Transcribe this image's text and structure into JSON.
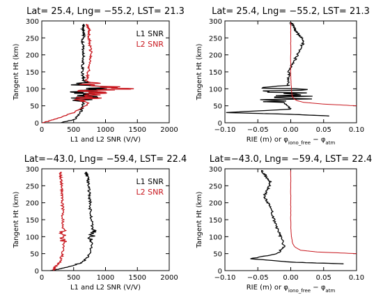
{
  "colors": {
    "l1": "#000000",
    "l2": "#c8161d",
    "axis": "#000000"
  },
  "chart_data": [
    {
      "type": "line",
      "title": "Lat= 25.4, Lng= −55.2, LST= 21.3",
      "xlabel": "L1 and L2 SNR (V/V)",
      "ylabel": "Tangent Ht (km)",
      "xlim": [
        0,
        2000
      ],
      "ylim": [
        0,
        300
      ],
      "xticks": [
        "0",
        "500",
        "1000",
        "1500",
        "2000"
      ],
      "yticks": [
        "0",
        "50",
        "100",
        "150",
        "200",
        "250",
        "300"
      ],
      "legend": [
        "L1 SNR",
        "L2 SNR"
      ],
      "legend_position": "top-right",
      "series": [
        {
          "name": "L1 SNR",
          "color": "#000000",
          "x": [
            300,
            520,
            610,
            640,
            660,
            700,
            650,
            900,
            700,
            660,
            640,
            640,
            650,
            660,
            650,
            640,
            660,
            650,
            640,
            650,
            660
          ],
          "y": [
            0,
            10,
            30,
            50,
            70,
            85,
            95,
            100,
            110,
            125,
            140,
            160,
            180,
            200,
            220,
            240,
            255,
            265,
            275,
            285,
            290
          ]
        },
        {
          "name": "L2 SNR",
          "color": "#c8161d",
          "x": [
            20,
            200,
            500,
            700,
            750,
            820,
            750,
            1300,
            800,
            700,
            720,
            740,
            760,
            780,
            760,
            750,
            740,
            750,
            740,
            720,
            700
          ],
          "y": [
            0,
            10,
            30,
            50,
            70,
            85,
            95,
            100,
            110,
            125,
            140,
            160,
            180,
            200,
            220,
            240,
            255,
            265,
            275,
            285,
            290
          ]
        }
      ]
    },
    {
      "type": "line",
      "title": "Lat= 25.4, Lng= −55.2, LST= 21.3",
      "xlabel": "RIE (m) or φ",
      "xlabel_sub": "iono_free",
      "xlabel_mid": " − φ",
      "xlabel_sub2": "atm",
      "ylabel": "Tangent Ht (km)",
      "xlim": [
        -0.1,
        0.1
      ],
      "ylim": [
        0,
        300
      ],
      "xticks": [
        "−0.10",
        "−0.05",
        "0.00",
        "0.05",
        "0.10"
      ],
      "yticks": [
        "0",
        "50",
        "100",
        "150",
        "200",
        "250",
        "300"
      ],
      "series": [
        {
          "name": "",
          "color": "#000000",
          "x": [
            0.06,
            0.0,
            -0.1,
            0.0,
            -0.01,
            -0.002,
            -0.004,
            -0.003,
            -0.003,
            -0.002,
            0.005,
            0.01,
            0.015,
            0.02,
            0.018,
            0.012,
            0.008,
            0.005,
            0.002,
            0.0
          ],
          "y": [
            20,
            25,
            30,
            40,
            60,
            80,
            100,
            120,
            140,
            160,
            180,
            200,
            220,
            240,
            250,
            260,
            270,
            280,
            290,
            295
          ]
        },
        {
          "name": "",
          "color": "#c8161d",
          "x": [
            0.1,
            0.05,
            0.02,
            0.01,
            0.005,
            0.002,
            0.001,
            0.0,
            0.0,
            0.0,
            0.0
          ],
          "y": [
            50,
            55,
            60,
            65,
            70,
            80,
            100,
            130,
            180,
            240,
            295
          ]
        }
      ]
    },
    {
      "type": "line",
      "title": "Lat=−43.0, Lng= −59.4, LST= 22.4",
      "xlabel": "L1 and L2 SNR (V/V)",
      "ylabel": "Tangent Ht (km)",
      "xlim": [
        0,
        2000
      ],
      "ylim": [
        0,
        300
      ],
      "xticks": [
        "0",
        "500",
        "1000",
        "1500",
        "2000"
      ],
      "yticks": [
        "0",
        "50",
        "100",
        "150",
        "200",
        "250",
        "300"
      ],
      "legend": [
        "L1 SNR",
        "L2 SNR"
      ],
      "legend_position": "top-right",
      "series": [
        {
          "name": "L1 SNR",
          "color": "#000000",
          "x": [
            150,
            400,
            650,
            760,
            790,
            780,
            800,
            780,
            760,
            760,
            750,
            740,
            730,
            720,
            700,
            690
          ],
          "y": [
            0,
            10,
            25,
            50,
            80,
            100,
            120,
            150,
            180,
            200,
            220,
            240,
            260,
            275,
            285,
            290
          ]
        },
        {
          "name": "L2 SNR",
          "color": "#c8161d",
          "x": [
            200,
            200,
            280,
            330,
            340,
            330,
            340,
            330,
            330,
            320,
            320,
            310,
            310,
            300,
            300,
            295
          ],
          "y": [
            0,
            10,
            25,
            50,
            80,
            100,
            120,
            150,
            180,
            200,
            220,
            240,
            260,
            275,
            285,
            290
          ]
        }
      ]
    },
    {
      "type": "line",
      "title": "Lat=−43.0, Lng= −59.4, LST= 22.4",
      "xlabel": "RIE (m) or φ",
      "xlabel_sub": "iono_free",
      "xlabel_mid": " − φ",
      "xlabel_sub2": "atm",
      "ylabel": "Tangent Ht (km)",
      "xlim": [
        -0.1,
        0.1
      ],
      "ylim": [
        0,
        300
      ],
      "xticks": [
        "−0.10",
        "−0.05",
        "0.00",
        "0.05",
        "0.10"
      ],
      "yticks": [
        "0",
        "50",
        "100",
        "150",
        "200",
        "250",
        "300"
      ],
      "series": [
        {
          "name": "",
          "color": "#000000",
          "x": [
            0.08,
            0.0,
            -0.06,
            -0.02,
            -0.01,
            -0.015,
            -0.02,
            -0.025,
            -0.03,
            -0.035,
            -0.04,
            -0.035,
            -0.03,
            -0.035,
            -0.04,
            -0.045
          ],
          "y": [
            20,
            25,
            35,
            50,
            70,
            100,
            120,
            150,
            180,
            200,
            220,
            240,
            260,
            270,
            285,
            295
          ]
        },
        {
          "name": "",
          "color": "#c8161d",
          "x": [
            0.1,
            0.04,
            0.015,
            0.006,
            0.003,
            0.001,
            0.0,
            0.0,
            0.0,
            0.0
          ],
          "y": [
            50,
            55,
            60,
            70,
            80,
            100,
            140,
            200,
            250,
            295
          ]
        }
      ]
    }
  ]
}
